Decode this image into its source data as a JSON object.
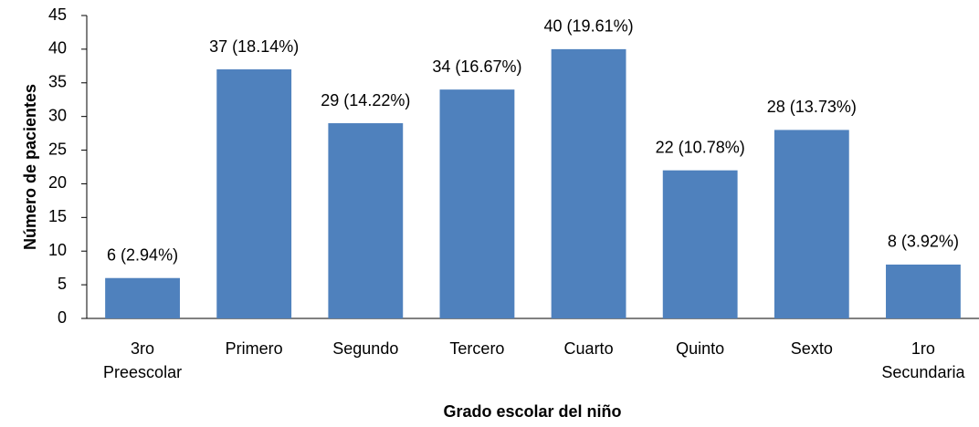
{
  "chart_data": {
    "type": "bar",
    "x_label": "Grado escolar del niño",
    "y_label": "Número de pacientes",
    "categories": [
      "3ro Preescolar",
      "Primero",
      "Segundo",
      "Tercero",
      "Cuarto",
      "Quinto",
      "Sexto",
      "1ro Secundaria"
    ],
    "values": [
      6,
      37,
      29,
      34,
      40,
      22,
      28,
      8
    ],
    "value_labels": [
      "6 (2.94%)",
      "37 (18.14%)",
      "29 (14.22%)",
      "34 (16.67%)",
      "40 (19.61%)",
      "22 (10.78%)",
      "28 (13.73%)",
      "8 (3.92%)"
    ],
    "color": "#4f81bd",
    "ylim": [
      0,
      45
    ],
    "yticks": [
      0,
      5,
      10,
      15,
      20,
      25,
      30,
      35,
      40,
      45
    ],
    "grid": false
  }
}
